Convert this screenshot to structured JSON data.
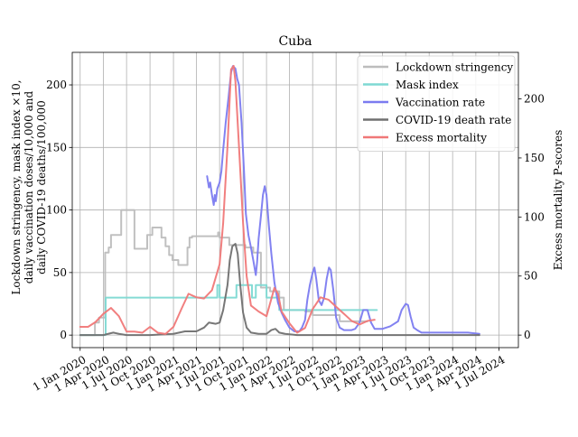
{
  "chart_data": {
    "type": "line",
    "title": "Cuba",
    "ylabel_left": [
      "Lockdown stringency, mask index ×10,",
      "daily vaccination doses/10,000 and",
      "daily COVID-19 deaths/100,000"
    ],
    "ylabel_right": "Excess mortality P-scores",
    "xlabel": "",
    "grid": true,
    "legend_position": "top-right",
    "x_ticks": [
      "1 Jan 2020",
      "1 Apr 2020",
      "1 Jul 2020",
      "1 Oct 2020",
      "1 Jan 2021",
      "1 Apr 2021",
      "1 Jul 2021",
      "1 Oct 2021",
      "1 Jan 2022",
      "1 Apr 2022",
      "1 Jul 2022",
      "1 Oct 2022",
      "1 Jan 2023",
      "1 Apr 2023",
      "1 Jul 2023",
      "1 Oct 2023",
      "1 Jan 2024",
      "1 Apr 2024",
      "1 Jul 2024"
    ],
    "xlim": [
      "2019-12-01",
      "2024-09-15"
    ],
    "ylim_left": [
      -10,
      226
    ],
    "yticks_left": [
      0,
      50,
      100,
      150,
      200
    ],
    "ylim_right": [
      -10.6,
      239.4
    ],
    "yticks_right": [
      0,
      50,
      100,
      150,
      200
    ],
    "series": [
      {
        "name": "Lockdown stringency",
        "color": "#bdbdbd",
        "axis": "left",
        "step": true,
        "points": [
          [
            "2020-01-01",
            0
          ],
          [
            "2020-02-01",
            0
          ],
          [
            "2020-02-28",
            10
          ],
          [
            "2020-03-15",
            14
          ],
          [
            "2020-04-01",
            14
          ],
          [
            "2020-04-08",
            66
          ],
          [
            "2020-04-22",
            70
          ],
          [
            "2020-05-01",
            80
          ],
          [
            "2020-06-01",
            80
          ],
          [
            "2020-06-10",
            100
          ],
          [
            "2020-07-15",
            100
          ],
          [
            "2020-08-01",
            69
          ],
          [
            "2020-09-01",
            69
          ],
          [
            "2020-09-20",
            80
          ],
          [
            "2020-10-01",
            80
          ],
          [
            "2020-10-10",
            86
          ],
          [
            "2020-11-01",
            86
          ],
          [
            "2020-11-15",
            78
          ],
          [
            "2020-12-01",
            71
          ],
          [
            "2020-12-15",
            64
          ],
          [
            "2020-12-28",
            60
          ],
          [
            "2021-01-15",
            60
          ],
          [
            "2021-01-20",
            56
          ],
          [
            "2021-02-20",
            56
          ],
          [
            "2021-02-25",
            70
          ],
          [
            "2021-03-05",
            78
          ],
          [
            "2021-03-15",
            79
          ],
          [
            "2021-04-01",
            79
          ],
          [
            "2021-06-15",
            79
          ],
          [
            "2021-06-25",
            82
          ],
          [
            "2021-07-01",
            78
          ],
          [
            "2021-08-01",
            78
          ],
          [
            "2021-08-08",
            72
          ],
          [
            "2021-10-01",
            72
          ],
          [
            "2021-10-10",
            70
          ],
          [
            "2021-11-01",
            70
          ],
          [
            "2021-11-10",
            66
          ],
          [
            "2021-12-01",
            66
          ],
          [
            "2021-12-10",
            38
          ],
          [
            "2022-01-01",
            38
          ],
          [
            "2022-01-15",
            35
          ],
          [
            "2022-02-15",
            35
          ],
          [
            "2022-02-20",
            30
          ],
          [
            "2022-03-10",
            20
          ],
          [
            "2022-04-01",
            20
          ],
          [
            "2022-06-01",
            19
          ],
          [
            "2022-07-01",
            16
          ],
          [
            "2022-08-01",
            16
          ],
          [
            "2022-10-15",
            11
          ],
          [
            "2022-12-01",
            11
          ],
          [
            "2023-01-15",
            11
          ],
          [
            "2023-02-01",
            11
          ]
        ]
      },
      {
        "name": "Mask index",
        "color": "#7ed9d3",
        "axis": "left",
        "step": true,
        "points": [
          [
            "2020-01-01",
            0
          ],
          [
            "2020-03-15",
            0
          ],
          [
            "2020-04-01",
            0
          ],
          [
            "2020-04-10",
            30
          ],
          [
            "2021-06-20",
            30
          ],
          [
            "2021-06-22",
            40
          ],
          [
            "2021-07-01",
            30
          ],
          [
            "2021-08-15",
            30
          ],
          [
            "2021-09-01",
            30
          ],
          [
            "2021-09-05",
            40
          ],
          [
            "2021-11-01",
            40
          ],
          [
            "2021-11-05",
            30
          ],
          [
            "2021-11-20",
            40
          ],
          [
            "2021-12-25",
            40
          ],
          [
            "2022-01-01",
            30
          ],
          [
            "2022-02-01",
            30
          ],
          [
            "2022-02-20",
            20
          ],
          [
            "2023-03-10",
            20
          ]
        ]
      },
      {
        "name": "Vaccination rate",
        "color": "#7b7bf0",
        "axis": "left",
        "step": false,
        "points": [
          [
            "2021-05-13",
            127
          ],
          [
            "2021-05-20",
            118
          ],
          [
            "2021-05-25",
            122
          ],
          [
            "2021-06-01",
            112
          ],
          [
            "2021-06-08",
            104
          ],
          [
            "2021-06-12",
            112
          ],
          [
            "2021-06-16",
            107
          ],
          [
            "2021-06-22",
            117
          ],
          [
            "2021-07-01",
            122
          ],
          [
            "2021-07-08",
            131
          ],
          [
            "2021-07-15",
            148
          ],
          [
            "2021-07-25",
            170
          ],
          [
            "2021-08-05",
            190
          ],
          [
            "2021-08-15",
            210
          ],
          [
            "2021-08-22",
            215
          ],
          [
            "2021-09-01",
            213
          ],
          [
            "2021-09-08",
            205
          ],
          [
            "2021-09-15",
            200
          ],
          [
            "2021-09-25",
            170
          ],
          [
            "2021-10-05",
            130
          ],
          [
            "2021-10-12",
            97
          ],
          [
            "2021-10-22",
            80
          ],
          [
            "2021-11-01",
            70
          ],
          [
            "2021-11-10",
            60
          ],
          [
            "2021-11-20",
            48
          ],
          [
            "2021-11-25",
            58
          ],
          [
            "2021-12-01",
            77
          ],
          [
            "2021-12-10",
            95
          ],
          [
            "2021-12-18",
            112
          ],
          [
            "2021-12-25",
            119
          ],
          [
            "2022-01-01",
            112
          ],
          [
            "2022-01-10",
            88
          ],
          [
            "2022-01-20",
            65
          ],
          [
            "2022-02-01",
            42
          ],
          [
            "2022-02-15",
            26
          ],
          [
            "2022-03-01",
            18
          ],
          [
            "2022-03-15",
            12
          ],
          [
            "2022-04-01",
            6
          ],
          [
            "2022-04-20",
            3
          ],
          [
            "2022-05-10",
            3
          ],
          [
            "2022-05-20",
            6
          ],
          [
            "2022-06-01",
            12
          ],
          [
            "2022-06-10",
            28
          ],
          [
            "2022-06-20",
            40
          ],
          [
            "2022-07-01",
            50
          ],
          [
            "2022-07-08",
            54
          ],
          [
            "2022-07-15",
            45
          ],
          [
            "2022-07-25",
            28
          ],
          [
            "2022-08-05",
            24
          ],
          [
            "2022-08-15",
            30
          ],
          [
            "2022-08-25",
            45
          ],
          [
            "2022-09-03",
            54
          ],
          [
            "2022-09-10",
            52
          ],
          [
            "2022-09-20",
            36
          ],
          [
            "2022-10-01",
            14
          ],
          [
            "2022-10-15",
            6
          ],
          [
            "2022-11-01",
            4
          ],
          [
            "2022-12-01",
            4
          ],
          [
            "2022-12-15",
            5
          ],
          [
            "2023-01-01",
            10
          ],
          [
            "2023-01-15",
            20
          ],
          [
            "2023-02-01",
            20
          ],
          [
            "2023-02-15",
            10
          ],
          [
            "2023-03-01",
            5
          ],
          [
            "2023-04-01",
            5
          ],
          [
            "2023-05-01",
            7
          ],
          [
            "2023-06-01",
            11
          ],
          [
            "2023-06-15",
            20
          ],
          [
            "2023-07-01",
            25
          ],
          [
            "2023-07-10",
            24
          ],
          [
            "2023-07-20",
            15
          ],
          [
            "2023-08-01",
            6
          ],
          [
            "2023-08-15",
            4
          ],
          [
            "2023-09-01",
            2
          ],
          [
            "2023-10-01",
            2
          ],
          [
            "2024-01-01",
            2
          ],
          [
            "2024-03-01",
            2
          ],
          [
            "2024-04-15",
            1
          ]
        ]
      },
      {
        "name": "COVID-19 death rate",
        "color": "#707070",
        "axis": "left",
        "step": false,
        "points": [
          [
            "2020-01-01",
            0
          ],
          [
            "2020-04-01",
            0
          ],
          [
            "2020-04-20",
            1
          ],
          [
            "2020-05-10",
            2
          ],
          [
            "2020-06-01",
            1
          ],
          [
            "2020-07-01",
            0
          ],
          [
            "2020-10-01",
            0
          ],
          [
            "2021-01-01",
            1
          ],
          [
            "2021-02-15",
            3
          ],
          [
            "2021-04-01",
            3
          ],
          [
            "2021-05-01",
            6
          ],
          [
            "2021-05-20",
            10
          ],
          [
            "2021-06-15",
            9
          ],
          [
            "2021-07-01",
            10
          ],
          [
            "2021-07-15",
            20
          ],
          [
            "2021-08-01",
            40
          ],
          [
            "2021-08-10",
            60
          ],
          [
            "2021-08-20",
            71
          ],
          [
            "2021-09-01",
            73
          ],
          [
            "2021-09-10",
            65
          ],
          [
            "2021-09-20",
            40
          ],
          [
            "2021-10-01",
            18
          ],
          [
            "2021-10-15",
            6
          ],
          [
            "2021-11-01",
            2
          ],
          [
            "2021-12-01",
            1
          ],
          [
            "2022-01-01",
            1
          ],
          [
            "2022-01-20",
            4
          ],
          [
            "2022-02-05",
            5
          ],
          [
            "2022-02-20",
            2
          ],
          [
            "2022-03-15",
            1
          ],
          [
            "2022-05-01",
            0
          ],
          [
            "2024-04-15",
            0
          ]
        ]
      },
      {
        "name": "Excess mortality",
        "color": "#f07878",
        "axis": "right",
        "step": false,
        "points": [
          [
            "2020-01-01",
            7
          ],
          [
            "2020-02-01",
            7
          ],
          [
            "2020-03-01",
            11
          ],
          [
            "2020-04-01",
            18
          ],
          [
            "2020-05-01",
            23
          ],
          [
            "2020-06-01",
            16
          ],
          [
            "2020-07-01",
            3
          ],
          [
            "2020-08-01",
            3
          ],
          [
            "2020-09-01",
            2
          ],
          [
            "2020-10-01",
            7
          ],
          [
            "2020-11-01",
            2
          ],
          [
            "2020-12-01",
            1
          ],
          [
            "2021-01-01",
            7
          ],
          [
            "2021-02-01",
            22
          ],
          [
            "2021-03-01",
            35
          ],
          [
            "2021-04-01",
            32
          ],
          [
            "2021-05-01",
            31
          ],
          [
            "2021-06-01",
            38
          ],
          [
            "2021-07-01",
            60
          ],
          [
            "2021-07-15",
            95
          ],
          [
            "2021-08-01",
            160
          ],
          [
            "2021-08-15",
            225
          ],
          [
            "2021-08-25",
            228
          ],
          [
            "2021-09-01",
            215
          ],
          [
            "2021-09-15",
            160
          ],
          [
            "2021-10-01",
            95
          ],
          [
            "2021-10-15",
            50
          ],
          [
            "2021-11-01",
            25
          ],
          [
            "2021-12-01",
            20
          ],
          [
            "2022-01-01",
            16
          ],
          [
            "2022-02-01",
            40
          ],
          [
            "2022-02-15",
            35
          ],
          [
            "2022-03-01",
            20
          ],
          [
            "2022-04-01",
            10
          ],
          [
            "2022-05-01",
            2
          ],
          [
            "2022-06-01",
            6
          ],
          [
            "2022-07-01",
            22
          ],
          [
            "2022-08-01",
            32
          ],
          [
            "2022-09-01",
            30
          ],
          [
            "2022-10-01",
            24
          ],
          [
            "2022-11-01",
            18
          ],
          [
            "2022-12-01",
            12
          ],
          [
            "2023-01-01",
            9
          ],
          [
            "2023-02-01",
            12
          ],
          [
            "2023-03-01",
            13
          ]
        ]
      }
    ]
  }
}
